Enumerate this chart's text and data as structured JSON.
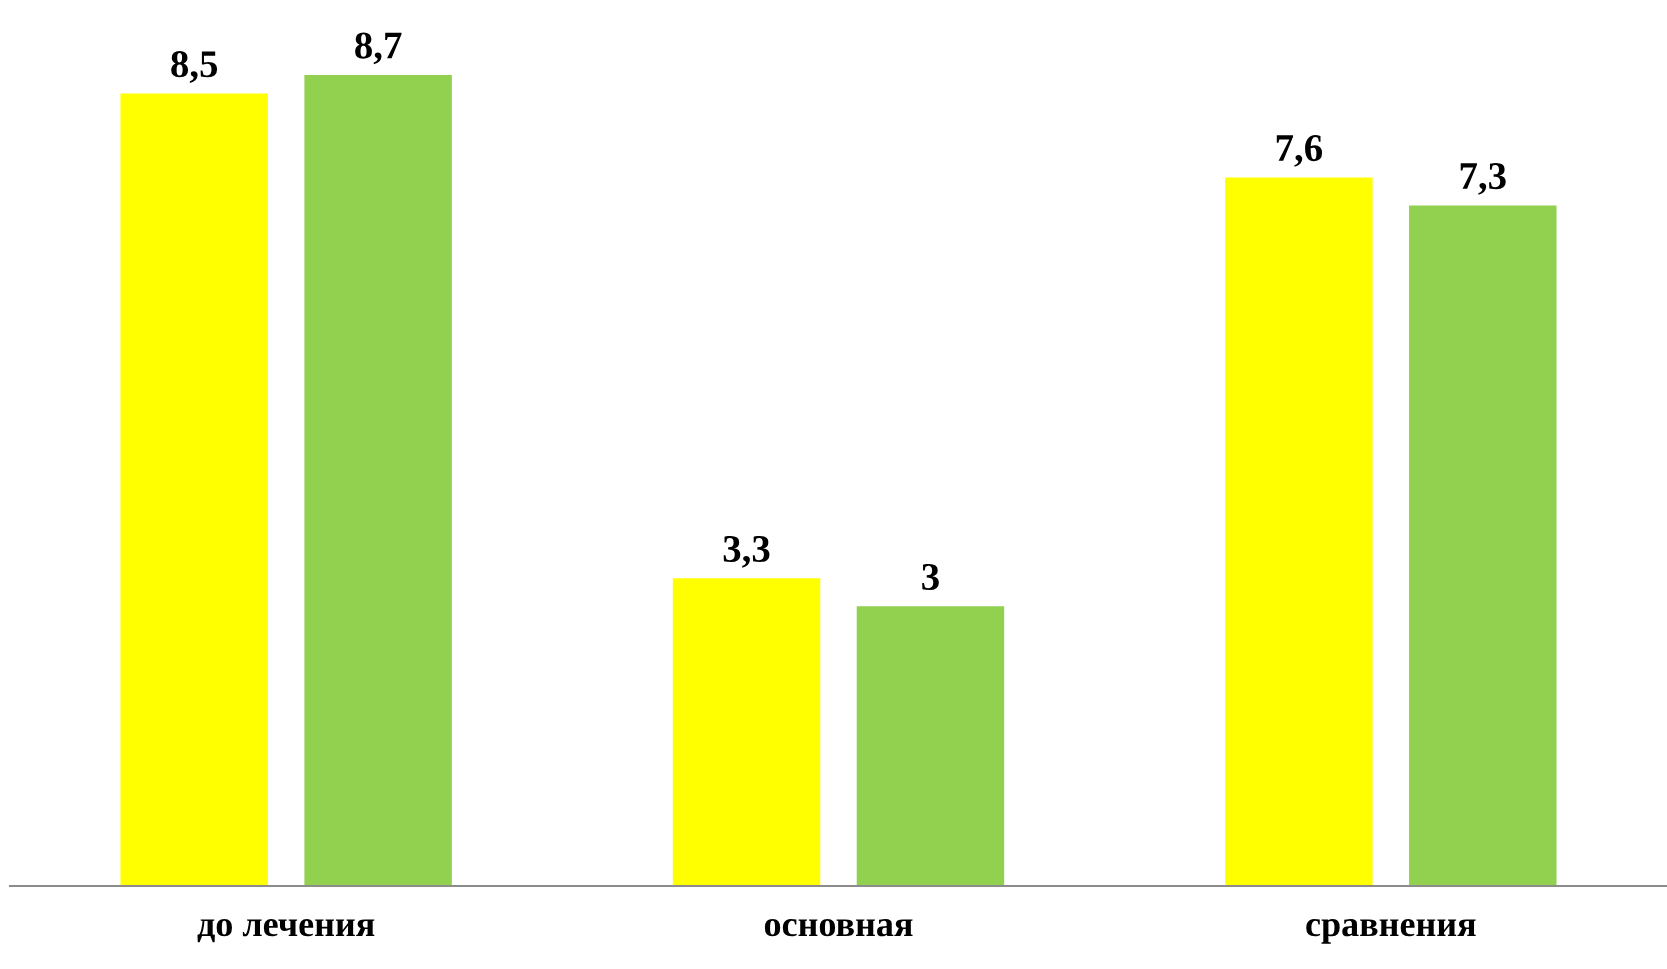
{
  "chart_data": {
    "type": "bar",
    "categories": [
      "до лечения",
      "основная",
      "сравнения"
    ],
    "series": [
      {
        "color": "#ffff00",
        "values": [
          8.5,
          3.3,
          7.6
        ],
        "value_labels": [
          "8,5",
          "3,3",
          "7,6"
        ]
      },
      {
        "color": "#92d050",
        "values": [
          8.7,
          3,
          7.3
        ],
        "value_labels": [
          "8,7",
          "3",
          "7,3"
        ]
      }
    ],
    "grid": false,
    "legend": false
  }
}
